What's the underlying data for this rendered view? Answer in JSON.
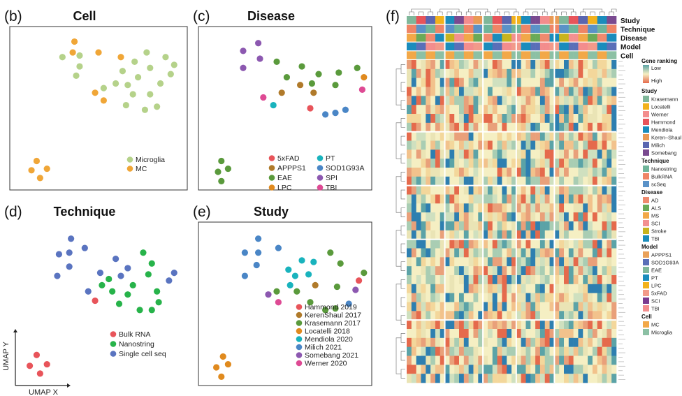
{
  "colors": {
    "microglia": "#b5d28a",
    "mc": "#f0a637",
    "fiveXFAD": "#e8545a",
    "APPPS1": "#b07a2a",
    "EAE": "#5a9a3c",
    "LPC": "#e08a1e",
    "PT": "#19b3bd",
    "SOD1G93A": "#4a86c6",
    "SPI": "#8c58b0",
    "TBI": "#de4a94",
    "bulk": "#e8545a",
    "nanostring": "#27b34a",
    "scseq": "#5a74c0",
    "hammond": "#e8545a",
    "kerenshaul": "#b07a2a",
    "krasemann": "#5a9a3c",
    "locatelli": "#e08a1e",
    "mendiola": "#19b3bd",
    "milich": "#4a86c6",
    "somebang": "#8c58b0",
    "werner": "#de4a94"
  },
  "panels": [
    {
      "label": "(b)",
      "title": "Cell",
      "legend": [
        {
          "text": "Microglia",
          "color": "#b5d28a"
        },
        {
          "text": "MC",
          "color": "#f0a637"
        }
      ]
    },
    {
      "label": "(c)",
      "title": "Disease",
      "legend": [
        {
          "text": "5xFAD",
          "color": "#e8545a"
        },
        {
          "text": "APPPS1",
          "color": "#b07a2a"
        },
        {
          "text": "EAE",
          "color": "#5a9a3c"
        },
        {
          "text": "LPC",
          "color": "#e08a1e"
        },
        {
          "text": "PT",
          "color": "#19b3bd"
        },
        {
          "text": "SOD1G93A",
          "color": "#4a86c6"
        },
        {
          "text": "SPI",
          "color": "#8c58b0"
        },
        {
          "text": "TBI",
          "color": "#de4a94"
        }
      ]
    },
    {
      "label": "(d)",
      "title": "Technique",
      "legend": [
        {
          "text": "Bulk RNA",
          "color": "#e8545a"
        },
        {
          "text": "Nanostring",
          "color": "#27b34a"
        },
        {
          "text": "Single cell seq",
          "color": "#5a74c0"
        }
      ]
    },
    {
      "label": "(e)",
      "title": "Study",
      "legend": [
        {
          "text": "Hammond 2019",
          "color": "#e8545a"
        },
        {
          "text": "KerenShaul 2017",
          "color": "#b07a2a"
        },
        {
          "text": "Krasemann 2017",
          "color": "#5a9a3c"
        },
        {
          "text": "Locatelli 2018",
          "color": "#e08a1e"
        },
        {
          "text": "Mendiola 2020",
          "color": "#19b3bd"
        },
        {
          "text": "Milich 2021",
          "color": "#4a86c6"
        },
        {
          "text": "Somebang 2021",
          "color": "#8c58b0"
        },
        {
          "text": "Werner 2020",
          "color": "#de4a94"
        }
      ]
    }
  ],
  "axes": {
    "xlabel": "UMAP X",
    "ylabel": "UMAP Y"
  },
  "chart_data": [
    {
      "type": "scatter",
      "title": "Cell",
      "points": [
        {
          "x": 3.6,
          "y": 9.3,
          "g": "mc"
        },
        {
          "x": 3.5,
          "y": 8.6,
          "g": "mc"
        },
        {
          "x": 2.9,
          "y": 8.3,
          "g": "microglia"
        },
        {
          "x": 3.9,
          "y": 8.4,
          "g": "microglia"
        },
        {
          "x": 5.0,
          "y": 8.6,
          "g": "mc"
        },
        {
          "x": 6.3,
          "y": 8.3,
          "g": "mc"
        },
        {
          "x": 7.8,
          "y": 8.6,
          "g": "microglia"
        },
        {
          "x": 8.9,
          "y": 8.3,
          "g": "microglia"
        },
        {
          "x": 3.9,
          "y": 7.7,
          "g": "microglia"
        },
        {
          "x": 7.1,
          "y": 8.0,
          "g": "microglia"
        },
        {
          "x": 6.4,
          "y": 7.4,
          "g": "microglia"
        },
        {
          "x": 8.0,
          "y": 7.6,
          "g": "microglia"
        },
        {
          "x": 9.4,
          "y": 7.8,
          "g": "microglia"
        },
        {
          "x": 3.7,
          "y": 7.1,
          "g": "microglia"
        },
        {
          "x": 7.3,
          "y": 7.0,
          "g": "microglia"
        },
        {
          "x": 9.2,
          "y": 7.2,
          "g": "microglia"
        },
        {
          "x": 6.0,
          "y": 6.6,
          "g": "microglia"
        },
        {
          "x": 6.7,
          "y": 6.5,
          "g": "microglia"
        },
        {
          "x": 8.6,
          "y": 6.6,
          "g": "microglia"
        },
        {
          "x": 5.3,
          "y": 6.3,
          "g": "microglia"
        },
        {
          "x": 4.8,
          "y": 6.0,
          "g": "mc"
        },
        {
          "x": 7.0,
          "y": 5.9,
          "g": "microglia"
        },
        {
          "x": 8.0,
          "y": 5.9,
          "g": "microglia"
        },
        {
          "x": 5.3,
          "y": 5.5,
          "g": "mc"
        },
        {
          "x": 6.6,
          "y": 5.2,
          "g": "microglia"
        },
        {
          "x": 8.4,
          "y": 5.1,
          "g": "microglia"
        },
        {
          "x": 7.7,
          "y": 4.9,
          "g": "microglia"
        },
        {
          "x": 1.4,
          "y": 1.6,
          "g": "mc"
        },
        {
          "x": 1.1,
          "y": 1.0,
          "g": "mc"
        },
        {
          "x": 2.0,
          "y": 1.1,
          "g": "mc"
        },
        {
          "x": 1.6,
          "y": 0.5,
          "g": "mc"
        }
      ]
    },
    {
      "type": "scatter",
      "title": "Disease",
      "points": [
        {
          "x": 3.4,
          "y": 9.2,
          "g": "SPI"
        },
        {
          "x": 2.5,
          "y": 8.7,
          "g": "SPI"
        },
        {
          "x": 3.5,
          "y": 8.2,
          "g": "SPI"
        },
        {
          "x": 2.5,
          "y": 7.6,
          "g": "SPI"
        },
        {
          "x": 4.5,
          "y": 8.0,
          "g": "EAE"
        },
        {
          "x": 6.0,
          "y": 7.7,
          "g": "EAE"
        },
        {
          "x": 9.3,
          "y": 7.6,
          "g": "EAE"
        },
        {
          "x": 5.1,
          "y": 7.0,
          "g": "EAE"
        },
        {
          "x": 7.0,
          "y": 7.2,
          "g": "EAE"
        },
        {
          "x": 8.2,
          "y": 7.3,
          "g": "EAE"
        },
        {
          "x": 9.7,
          "y": 7.0,
          "g": "LPC"
        },
        {
          "x": 5.9,
          "y": 6.5,
          "g": "APPPS1"
        },
        {
          "x": 6.6,
          "y": 6.6,
          "g": "EAE"
        },
        {
          "x": 8.0,
          "y": 6.5,
          "g": "EAE"
        },
        {
          "x": 4.8,
          "y": 6.0,
          "g": "APPPS1"
        },
        {
          "x": 6.7,
          "y": 6.0,
          "g": "APPPS1"
        },
        {
          "x": 9.6,
          "y": 6.2,
          "g": "TBI"
        },
        {
          "x": 3.7,
          "y": 5.7,
          "g": "TBI"
        },
        {
          "x": 4.3,
          "y": 5.2,
          "g": "PT"
        },
        {
          "x": 6.5,
          "y": 5.0,
          "g": "fiveXFAD"
        },
        {
          "x": 7.4,
          "y": 4.6,
          "g": "SOD1G93A"
        },
        {
          "x": 8.0,
          "y": 4.7,
          "g": "SOD1G93A"
        },
        {
          "x": 8.6,
          "y": 4.9,
          "g": "SOD1G93A"
        },
        {
          "x": 1.2,
          "y": 1.6,
          "g": "EAE"
        },
        {
          "x": 1.0,
          "y": 0.9,
          "g": "EAE"
        },
        {
          "x": 1.6,
          "y": 1.1,
          "g": "EAE"
        },
        {
          "x": 1.2,
          "y": 0.3,
          "g": "EAE"
        }
      ]
    },
    {
      "type": "scatter",
      "title": "Technique",
      "points": [
        {
          "x": 3.4,
          "y": 9.2,
          "g": "scseq"
        },
        {
          "x": 2.7,
          "y": 8.2,
          "g": "scseq"
        },
        {
          "x": 3.3,
          "y": 8.3,
          "g": "scseq"
        },
        {
          "x": 4.2,
          "y": 8.6,
          "g": "scseq"
        },
        {
          "x": 6.0,
          "y": 7.9,
          "g": "scseq"
        },
        {
          "x": 7.6,
          "y": 8.3,
          "g": "nanostring"
        },
        {
          "x": 3.3,
          "y": 7.4,
          "g": "scseq"
        },
        {
          "x": 5.1,
          "y": 7.0,
          "g": "scseq"
        },
        {
          "x": 6.7,
          "y": 7.3,
          "g": "scseq"
        },
        {
          "x": 8.1,
          "y": 7.6,
          "g": "nanostring"
        },
        {
          "x": 2.6,
          "y": 6.8,
          "g": "scseq"
        },
        {
          "x": 5.6,
          "y": 6.6,
          "g": "nanostring"
        },
        {
          "x": 6.3,
          "y": 6.8,
          "g": "scseq"
        },
        {
          "x": 7.9,
          "y": 6.9,
          "g": "nanostring"
        },
        {
          "x": 9.4,
          "y": 7.0,
          "g": "scseq"
        },
        {
          "x": 5.2,
          "y": 6.2,
          "g": "nanostring"
        },
        {
          "x": 7.0,
          "y": 6.2,
          "g": "nanostring"
        },
        {
          "x": 9.1,
          "y": 6.5,
          "g": "scseq"
        },
        {
          "x": 4.4,
          "y": 5.8,
          "g": "scseq"
        },
        {
          "x": 5.8,
          "y": 5.8,
          "g": "nanostring"
        },
        {
          "x": 6.7,
          "y": 5.6,
          "g": "nanostring"
        },
        {
          "x": 8.4,
          "y": 5.8,
          "g": "nanostring"
        },
        {
          "x": 4.8,
          "y": 5.2,
          "g": "bulk"
        },
        {
          "x": 6.2,
          "y": 5.0,
          "g": "nanostring"
        },
        {
          "x": 7.4,
          "y": 4.6,
          "g": "nanostring"
        },
        {
          "x": 8.1,
          "y": 4.6,
          "g": "nanostring"
        },
        {
          "x": 8.5,
          "y": 5.1,
          "g": "nanostring"
        },
        {
          "x": 1.4,
          "y": 1.7,
          "g": "bulk"
        },
        {
          "x": 1.0,
          "y": 1.0,
          "g": "bulk"
        },
        {
          "x": 2.0,
          "y": 1.1,
          "g": "bulk"
        },
        {
          "x": 1.6,
          "y": 0.5,
          "g": "bulk"
        }
      ]
    },
    {
      "type": "scatter",
      "title": "Study",
      "points": [
        {
          "x": 3.4,
          "y": 9.2,
          "g": "milich"
        },
        {
          "x": 2.6,
          "y": 8.3,
          "g": "milich"
        },
        {
          "x": 3.4,
          "y": 8.3,
          "g": "milich"
        },
        {
          "x": 4.6,
          "y": 8.6,
          "g": "milich"
        },
        {
          "x": 6.0,
          "y": 7.8,
          "g": "mendiola"
        },
        {
          "x": 7.7,
          "y": 8.3,
          "g": "krasemann"
        },
        {
          "x": 3.3,
          "y": 7.5,
          "g": "milich"
        },
        {
          "x": 5.2,
          "y": 7.2,
          "g": "mendiola"
        },
        {
          "x": 6.7,
          "y": 7.7,
          "g": "mendiola"
        },
        {
          "x": 8.3,
          "y": 7.6,
          "g": "krasemann"
        },
        {
          "x": 2.6,
          "y": 6.8,
          "g": "milich"
        },
        {
          "x": 5.6,
          "y": 6.8,
          "g": "mendiola"
        },
        {
          "x": 6.4,
          "y": 6.9,
          "g": "mendiola"
        },
        {
          "x": 9.7,
          "y": 7.0,
          "g": "krasemann"
        },
        {
          "x": 5.3,
          "y": 6.2,
          "g": "mendiola"
        },
        {
          "x": 6.8,
          "y": 6.2,
          "g": "kerenshaul"
        },
        {
          "x": 9.4,
          "y": 6.5,
          "g": "hammond"
        },
        {
          "x": 4.5,
          "y": 5.8,
          "g": "krasemann"
        },
        {
          "x": 5.7,
          "y": 5.8,
          "g": "krasemann"
        },
        {
          "x": 8.1,
          "y": 6.1,
          "g": "krasemann"
        },
        {
          "x": 9.2,
          "y": 5.9,
          "g": "somebang"
        },
        {
          "x": 4.0,
          "y": 5.6,
          "g": "somebang"
        },
        {
          "x": 6.5,
          "y": 5.1,
          "g": "krasemann"
        },
        {
          "x": 4.6,
          "y": 5.1,
          "g": "werner"
        },
        {
          "x": 7.4,
          "y": 4.6,
          "g": "krasemann"
        },
        {
          "x": 8.0,
          "y": 4.7,
          "g": "krasemann"
        },
        {
          "x": 8.8,
          "y": 5.0,
          "g": "milich"
        },
        {
          "x": 1.3,
          "y": 1.6,
          "g": "locatelli"
        },
        {
          "x": 0.9,
          "y": 0.9,
          "g": "locatelli"
        },
        {
          "x": 1.6,
          "y": 1.1,
          "g": "locatelli"
        },
        {
          "x": 1.2,
          "y": 0.3,
          "g": "locatelli"
        }
      ]
    },
    {
      "type": "heatmap",
      "panel_label": "(f)",
      "annotation_rows": [
        "Study",
        "Technique",
        "Disease",
        "Model",
        "Cell"
      ],
      "n_rows": 36,
      "n_cols": 44,
      "col_gaps_after": [
        7,
        15,
        22,
        30
      ],
      "row_gaps_after": [
        7,
        13,
        19,
        28
      ],
      "legend": {
        "gradient": {
          "title": "Gene ranking",
          "low": "Low",
          "high": "High",
          "colors": [
            "#5ba3a7",
            "#f5efc3",
            "#e56a4c"
          ]
        },
        "groups": [
          {
            "title": "Study",
            "items": [
              {
                "text": "Krasemann",
                "color": "#7fb79a"
              },
              {
                "text": "Locatelli",
                "color": "#f2b21c"
              },
              {
                "text": "Werner",
                "color": "#f38d8d"
              },
              {
                "text": "Hammond",
                "color": "#e8545a"
              },
              {
                "text": "Mendiola",
                "color": "#1a8cbc"
              },
              {
                "text": "Keren–Shaul",
                "color": "#e99a55"
              },
              {
                "text": "Milich",
                "color": "#5a66b0"
              },
              {
                "text": "Somebang",
                "color": "#7a4a90"
              }
            ]
          },
          {
            "title": "Technique",
            "items": [
              {
                "text": "Nanostring",
                "color": "#6fb59a"
              },
              {
                "text": "BulkRNA",
                "color": "#ef8566"
              },
              {
                "text": "scSeq",
                "color": "#5a92c8"
              }
            ]
          },
          {
            "title": "Disease",
            "items": [
              {
                "text": "AD",
                "color": "#ef8a6e"
              },
              {
                "text": "ALS",
                "color": "#6aaa58"
              },
              {
                "text": "MS",
                "color": "#f2a848"
              },
              {
                "text": "SCI",
                "color": "#f39090"
              },
              {
                "text": "Stroke",
                "color": "#c8b41e"
              },
              {
                "text": "TBI",
                "color": "#1a8cbc"
              }
            ]
          },
          {
            "title": "Model",
            "items": [
              {
                "text": "APPPS1",
                "color": "#e9a15a"
              },
              {
                "text": "SOD1G93A",
                "color": "#5a6fb8"
              },
              {
                "text": "EAE",
                "color": "#7fb79a"
              },
              {
                "text": "PT",
                "color": "#1a8cbc"
              },
              {
                "text": "LPC",
                "color": "#f2b21c"
              },
              {
                "text": "5xFAD",
                "color": "#f29a8a"
              },
              {
                "text": "SCI",
                "color": "#7a3a90"
              },
              {
                "text": "TBI",
                "color": "#f38d8d"
              }
            ]
          },
          {
            "title": "Cell",
            "items": [
              {
                "text": "MC",
                "color": "#f2a848"
              },
              {
                "text": "Microglia",
                "color": "#8cc0a4"
              }
            ]
          }
        ]
      }
    }
  ]
}
